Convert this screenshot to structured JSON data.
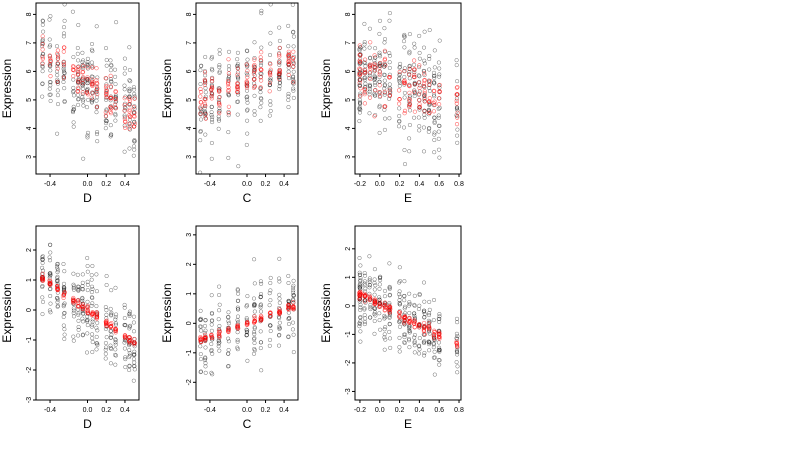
{
  "chart_data": [
    {
      "type": "scatter",
      "xlabel": "D",
      "ylabel": "Expression",
      "xlim": [
        -0.55,
        0.55
      ],
      "ylim": [
        2.4,
        8.4
      ],
      "xticks": [
        -0.4,
        0.0,
        0.2,
        0.4
      ],
      "xtick_labels": [
        "-0.4",
        "0.0",
        "0.2",
        "0.4"
      ],
      "yticks": [
        3,
        4,
        5,
        6,
        7,
        8
      ],
      "ytick_labels": [
        "3",
        "4",
        "5",
        "6",
        "7",
        "8"
      ],
      "x_groups": [
        -0.48,
        -0.4,
        -0.32,
        -0.25,
        -0.15,
        -0.1,
        -0.05,
        0.0,
        0.05,
        0.1,
        0.2,
        0.25,
        0.3,
        0.4,
        0.45,
        0.5
      ],
      "trend": {
        "type": "linear",
        "slope": -2.0,
        "intercept": 5.6,
        "noise": 0.9,
        "red_noise": 0.35
      },
      "series": [
        {
          "color": "#000000"
        },
        {
          "color": "#ff0000"
        }
      ]
    },
    {
      "type": "scatter",
      "xlabel": "C",
      "ylabel": "Expression",
      "xlim": [
        -0.55,
        0.55
      ],
      "ylim": [
        2.4,
        8.4
      ],
      "xticks": [
        -0.4,
        0.0,
        0.2,
        0.4
      ],
      "xtick_labels": [
        "-0.4",
        "0.0",
        "0.2",
        "0.4"
      ],
      "yticks": [
        3,
        4,
        5,
        6,
        7,
        8
      ],
      "ytick_labels": [
        "3",
        "4",
        "5",
        "6",
        "7",
        "8"
      ],
      "x_groups": [
        -0.5,
        -0.45,
        -0.38,
        -0.3,
        -0.2,
        -0.1,
        0.0,
        0.08,
        0.15,
        0.25,
        0.35,
        0.45,
        0.5
      ],
      "trend": {
        "type": "linear",
        "slope": 1.3,
        "intercept": 5.7,
        "noise": 0.9,
        "red_noise": 0.35
      },
      "series": [
        {
          "color": "#000000"
        },
        {
          "color": "#ff0000"
        }
      ]
    },
    {
      "type": "scatter",
      "xlabel": "E",
      "ylabel": "Expression",
      "xlim": [
        -0.25,
        0.82
      ],
      "ylim": [
        2.4,
        8.4
      ],
      "xticks": [
        -0.2,
        0.0,
        0.2,
        0.4,
        0.6,
        0.8
      ],
      "xtick_labels": [
        "-0.2",
        "0.0",
        "0.2",
        "0.4",
        "0.6",
        "0.8"
      ],
      "yticks": [
        3,
        4,
        5,
        6,
        7,
        8
      ],
      "ytick_labels": [
        "3",
        "4",
        "5",
        "6",
        "7",
        "8"
      ],
      "x_groups": [
        -0.2,
        -0.2,
        -0.15,
        -0.1,
        -0.05,
        0.0,
        0.05,
        0.1,
        0.2,
        0.25,
        0.3,
        0.35,
        0.4,
        0.45,
        0.5,
        0.55,
        0.6,
        0.78
      ],
      "trend": {
        "type": "linear",
        "slope": -1.2,
        "intercept": 5.8,
        "noise": 0.9,
        "red_noise": 0.5
      },
      "series": [
        {
          "color": "#000000"
        },
        {
          "color": "#ff0000"
        }
      ]
    },
    {
      "type": "scatter",
      "xlabel": "D",
      "ylabel": "Expression",
      "xlim": [
        -0.55,
        0.55
      ],
      "ylim": [
        -3.0,
        2.8
      ],
      "xticks": [
        -0.4,
        0.0,
        0.2,
        0.4
      ],
      "xtick_labels": [
        "-0.4",
        "0.0",
        "0.2",
        "0.4"
      ],
      "yticks": [
        -3,
        -2,
        -1,
        0,
        1,
        2
      ],
      "ytick_labels": [
        "-3",
        "-2",
        "-1",
        "0",
        "1",
        "2"
      ],
      "x_groups": [
        -0.48,
        -0.4,
        -0.32,
        -0.25,
        -0.15,
        -0.1,
        -0.05,
        0.0,
        0.05,
        0.1,
        0.2,
        0.25,
        0.3,
        0.4,
        0.45,
        0.5
      ],
      "trend": {
        "type": "linear",
        "slope": -2.2,
        "intercept": 0.0,
        "noise": 0.65,
        "red_noise": 0.06
      },
      "series": [
        {
          "color": "#000000"
        },
        {
          "color": "#ff0000"
        }
      ]
    },
    {
      "type": "scatter",
      "xlabel": "C",
      "ylabel": "Expression",
      "xlim": [
        -0.55,
        0.55
      ],
      "ylim": [
        -2.6,
        3.3
      ],
      "xticks": [
        -0.4,
        0.0,
        0.2,
        0.4
      ],
      "xtick_labels": [
        "-0.4",
        "0.0",
        "0.2",
        "0.4"
      ],
      "yticks": [
        -2,
        -1,
        0,
        1,
        2,
        3
      ],
      "ytick_labels": [
        "-2",
        "-1",
        "0",
        "1",
        "2",
        "3"
      ],
      "x_groups": [
        -0.5,
        -0.45,
        -0.38,
        -0.3,
        -0.2,
        -0.1,
        0.0,
        0.08,
        0.15,
        0.25,
        0.35,
        0.45,
        0.5
      ],
      "trend": {
        "type": "linear",
        "slope": 1.1,
        "intercept": 0.0,
        "noise": 0.65,
        "red_noise": 0.06
      },
      "series": [
        {
          "color": "#000000"
        },
        {
          "color": "#ff0000"
        }
      ]
    },
    {
      "type": "scatter",
      "xlabel": "E",
      "ylabel": "Expression",
      "xlim": [
        -0.25,
        0.82
      ],
      "ylim": [
        -3.3,
        2.8
      ],
      "xticks": [
        -0.2,
        0.0,
        0.2,
        0.4,
        0.6,
        0.8
      ],
      "xtick_labels": [
        "-0.2",
        "0.0",
        "0.2",
        "0.4",
        "0.6",
        "0.8"
      ],
      "yticks": [
        -3,
        -2,
        -1,
        0,
        1,
        2
      ],
      "ytick_labels": [
        "-3",
        "-2",
        "-1",
        "0",
        "1",
        "2"
      ],
      "x_groups": [
        -0.2,
        -0.2,
        -0.15,
        -0.1,
        -0.05,
        0.0,
        0.05,
        0.1,
        0.2,
        0.25,
        0.3,
        0.35,
        0.4,
        0.45,
        0.5,
        0.55,
        0.6,
        0.78
      ],
      "trend": {
        "type": "linear",
        "slope": -1.8,
        "intercept": 0.05,
        "noise": 0.6,
        "red_noise": 0.08
      },
      "series": [
        {
          "color": "#000000"
        },
        {
          "color": "#ff0000"
        }
      ]
    }
  ]
}
